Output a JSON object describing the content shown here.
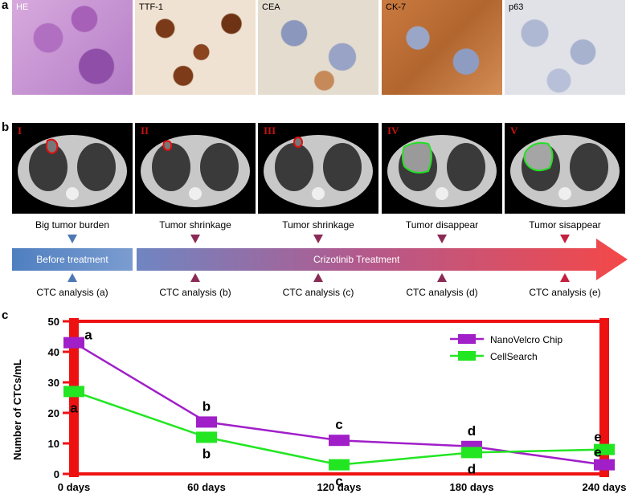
{
  "panels": {
    "a": "a",
    "b": "b",
    "c": "c"
  },
  "stains": [
    "HE",
    "TTF-1",
    "CEA",
    "CK-7",
    "p63"
  ],
  "ct_scans": [
    {
      "numeral": "I"
    },
    {
      "numeral": "II"
    },
    {
      "numeral": "III"
    },
    {
      "numeral": "IV"
    },
    {
      "numeral": "V"
    }
  ],
  "tumor_status": [
    "Big tumor burden",
    "Tumor shrinkage",
    "Tumor shrinkage",
    "Tumor disappear",
    "Tumor sisappear"
  ],
  "timeline": {
    "before": "Before treatment",
    "treatment": "Crizotinib  Treatment"
  },
  "ctc_analysis": [
    "CTC analysis (a)",
    "CTC analysis (b)",
    "CTC analysis (c)",
    "CTC analysis (d)",
    "CTC analysis (e)"
  ],
  "colors": {
    "nanovelcro": "#a01fc8",
    "cellsearch": "#22e622",
    "frame": "#ee1111",
    "before_bar": "#4f7fc0",
    "treatment_arrow": "#f04848"
  },
  "chart_data": {
    "type": "line",
    "ylabel": "Number of  CTCs/mL",
    "categories": [
      "0 days",
      "60 days",
      "120 days",
      "180 days",
      "240 days"
    ],
    "x": [
      0,
      60,
      120,
      180,
      240
    ],
    "ylim": [
      0,
      50
    ],
    "yticks": [
      "0",
      "10",
      "20",
      "30",
      "40",
      "50"
    ],
    "legend": "top-right",
    "series": [
      {
        "name": "NanoVelcro Chip",
        "x": [
          0,
          60,
          120,
          180,
          240
        ],
        "values": [
          43,
          17,
          11,
          9,
          3
        ],
        "labels": [
          "a",
          "b",
          "c",
          "d",
          "e"
        ]
      },
      {
        "name": "CellSearch",
        "x": [
          0,
          60,
          120,
          180,
          240
        ],
        "values": [
          27,
          12,
          3,
          7,
          8
        ],
        "labels": [
          "a",
          "b",
          "c",
          "d",
          "e"
        ]
      }
    ]
  }
}
